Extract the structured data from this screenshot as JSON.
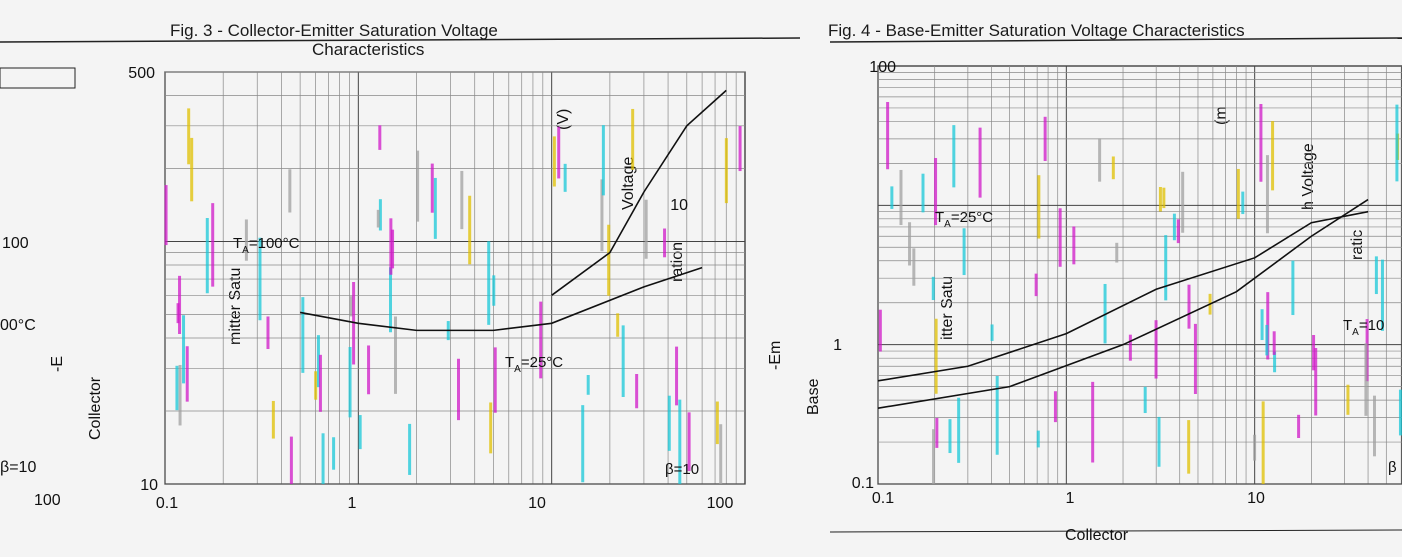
{
  "chart_data": [
    {
      "type": "line",
      "panel": "left",
      "title_line1": "Fig. 3 - Collector-Emitter Saturation Voltage",
      "title_line2": "Characteristics",
      "ylabel_parts": [
        "Collector",
        "-E",
        "mitter Satu",
        "ration",
        " Voltage",
        "(V)"
      ],
      "log_x": true,
      "log_y": true,
      "x_ticks": [
        "0.1",
        "1",
        "10",
        "100"
      ],
      "y_ticks": [
        "500",
        "100",
        "10"
      ],
      "left_fragment_ticks": [
        "100"
      ],
      "left_fragment_labels": [
        "00°C",
        "β=10"
      ],
      "annotations": [
        {
          "id": "ta-hot",
          "text": "T",
          "sub": "A",
          "rest": "=100°C"
        },
        {
          "id": "ta-room",
          "text": "T",
          "sub": "A",
          "rest": "=25°C"
        },
        {
          "id": "beta",
          "text": "β=10"
        }
      ],
      "series": [
        {
          "x": [
            0.5,
            1,
            2,
            5,
            10,
            30,
            60
          ],
          "y": [
            51,
            46,
            43,
            43,
            46,
            65,
            78
          ]
        },
        {
          "x": [
            10,
            20,
            30,
            50,
            80
          ],
          "y": [
            60,
            90,
            160,
            300,
            420
          ]
        }
      ]
    },
    {
      "type": "line",
      "panel": "right",
      "title": "Fig. 4 - Base-Emitter Saturation Voltage Characteristics",
      "ylabel_parts": [
        "Base",
        "-Em",
        "itter Satu",
        "ratic",
        "h Voltage",
        "(m"
      ],
      "log_x": true,
      "log_y": true,
      "x_ticks": [
        "0.1",
        "1",
        "10"
      ],
      "y_ticks": [
        "100",
        "10",
        "1",
        "0.1"
      ],
      "annotations": [
        {
          "id": "ta-room",
          "text": "T",
          "sub": "A",
          "rest": "=25°C"
        },
        {
          "id": "ta-hot",
          "text": "T",
          "sub": "A",
          "rest": "=10"
        },
        {
          "id": "beta",
          "text": "β"
        }
      ],
      "series": [
        {
          "x": [
            0.1,
            0.3,
            1,
            3,
            10,
            20,
            40
          ],
          "y": [
            0.55,
            0.7,
            1.2,
            2.5,
            4.2,
            7.5,
            9
          ]
        },
        {
          "x": [
            0.1,
            0.5,
            2,
            8,
            20,
            40
          ],
          "y": [
            0.35,
            0.5,
            1.0,
            2.4,
            6.0,
            11
          ]
        }
      ]
    }
  ],
  "footer": {
    "left_noise": "",
    "right_fragment": "Collector"
  }
}
